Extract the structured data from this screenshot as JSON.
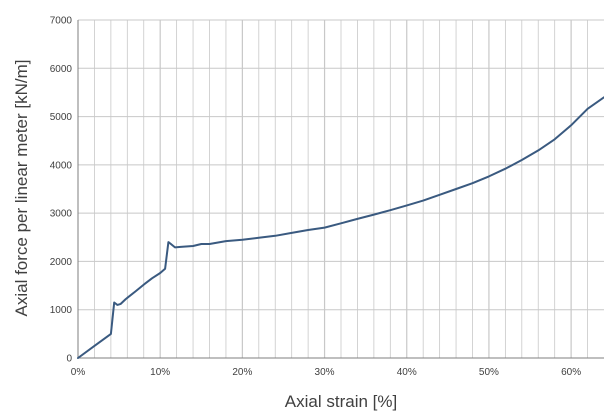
{
  "chart_data": {
    "type": "line",
    "title": "",
    "xlabel": "Axial strain [%]",
    "ylabel": "Axial force per linear meter [kN/m]",
    "xlim": [
      0,
      64
    ],
    "ylim": [
      0,
      7000
    ],
    "x_ticks": [
      0,
      10,
      20,
      30,
      40,
      50,
      60
    ],
    "x_tick_labels": [
      "0%",
      "10%",
      "20%",
      "30%",
      "40%",
      "50%",
      "60%"
    ],
    "y_ticks": [
      0,
      1000,
      2000,
      3000,
      4000,
      5000,
      6000,
      7000
    ],
    "y_tick_labels": [
      "0",
      "1000",
      "2000",
      "3000",
      "4000",
      "5000",
      "6000",
      "7000"
    ],
    "grid": true,
    "colors": {
      "line": "#3a5a80",
      "grid": "#c8c8c8",
      "axis": "#7f7f7f"
    },
    "series": [
      {
        "x": [
          0,
          2,
          4,
          4.4,
          4.8,
          5.2,
          5.8,
          7,
          8,
          9,
          10,
          10.6,
          11,
          11.3,
          11.8,
          12.5,
          14,
          15,
          16,
          18,
          20,
          22,
          24,
          26,
          28,
          30,
          32,
          34,
          36,
          38,
          40,
          42,
          44,
          46,
          48,
          50,
          52,
          54,
          56,
          58,
          60,
          62,
          64
        ],
        "y": [
          0,
          250,
          500,
          1150,
          1100,
          1120,
          1220,
          1380,
          1520,
          1650,
          1760,
          1850,
          2400,
          2360,
          2290,
          2300,
          2320,
          2360,
          2360,
          2420,
          2450,
          2490,
          2530,
          2590,
          2650,
          2700,
          2790,
          2880,
          2970,
          3060,
          3160,
          3260,
          3380,
          3500,
          3620,
          3760,
          3920,
          4100,
          4300,
          4530,
          4820,
          5160,
          5400
        ]
      }
    ]
  }
}
